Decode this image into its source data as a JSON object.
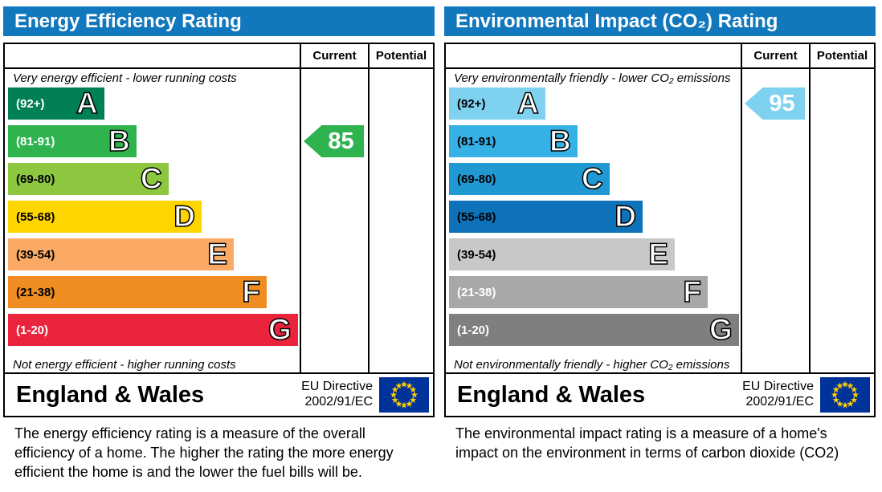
{
  "chart_data": [
    {
      "type": "bar",
      "id": "energy-efficiency",
      "title": "Energy Efficiency Rating",
      "header_color": "#1278be",
      "column_headers": {
        "current": "Current",
        "potential": "Potential"
      },
      "caption_top": "Very energy efficient - lower running costs",
      "caption_bottom": "Not energy efficient - higher running costs",
      "bands": [
        {
          "letter": "A",
          "range": "(92+)",
          "min": 92,
          "max": 100,
          "color": "#008054",
          "text_color": "#ffffff",
          "width_pct": 33
        },
        {
          "letter": "B",
          "range": "(81-91)",
          "min": 81,
          "max": 91,
          "color": "#2eb34e",
          "text_color": "#ffffff",
          "width_pct": 44
        },
        {
          "letter": "C",
          "range": "(69-80)",
          "min": 69,
          "max": 80,
          "color": "#8dc63f",
          "text_color": "#000000",
          "width_pct": 55
        },
        {
          "letter": "D",
          "range": "(55-68)",
          "min": 55,
          "max": 68,
          "color": "#ffd500",
          "text_color": "#000000",
          "width_pct": 66.4
        },
        {
          "letter": "E",
          "range": "(39-54)",
          "min": 39,
          "max": 54,
          "color": "#fbaa65",
          "text_color": "#000000",
          "width_pct": 77.4
        },
        {
          "letter": "F",
          "range": "(21-38)",
          "min": 21,
          "max": 38,
          "color": "#ef8d22",
          "text_color": "#000000",
          "width_pct": 88.7
        },
        {
          "letter": "G",
          "range": "(1-20)",
          "min": 1,
          "max": 20,
          "color": "#e9243c",
          "text_color": "#ffffff",
          "width_pct": 99.4
        }
      ],
      "current": 85,
      "potential": null,
      "footer": {
        "region": "England & Wales",
        "directive_line1": "EU Directive",
        "directive_line2": "2002/91/EC"
      },
      "eu_flag": {
        "field_color": "#003399",
        "star_color": "#ffcc00"
      },
      "description": "The energy efficiency rating is a measure of the overall efficiency of a home.  The higher the rating the more energy efficient the home is and the lower the fuel bills will be."
    },
    {
      "type": "bar",
      "id": "environmental-impact",
      "title": "Environmental Impact (CO₂) Rating",
      "header_color": "#1278be",
      "column_headers": {
        "current": "Current",
        "potential": "Potential"
      },
      "caption_top": "Very environmentally friendly - lower CO₂ emissions",
      "caption_bottom": "Not environmentally friendly - higher CO₂ emissions",
      "bands": [
        {
          "letter": "A",
          "range": "(92+)",
          "min": 92,
          "max": 100,
          "color": "#7fd1f0",
          "text_color": "#000000",
          "width_pct": 33
        },
        {
          "letter": "B",
          "range": "(81-91)",
          "min": 81,
          "max": 91,
          "color": "#35b1e6",
          "text_color": "#000000",
          "width_pct": 44
        },
        {
          "letter": "C",
          "range": "(69-80)",
          "min": 69,
          "max": 80,
          "color": "#2098d1",
          "text_color": "#000000",
          "width_pct": 55
        },
        {
          "letter": "D",
          "range": "(55-68)",
          "min": 55,
          "max": 68,
          "color": "#0d72b9",
          "text_color": "#000000",
          "width_pct": 66.4
        },
        {
          "letter": "E",
          "range": "(39-54)",
          "min": 39,
          "max": 54,
          "color": "#c8c8c8",
          "text_color": "#000000",
          "width_pct": 77.4
        },
        {
          "letter": "F",
          "range": "(21-38)",
          "min": 21,
          "max": 38,
          "color": "#a8a8a8",
          "text_color": "#ffffff",
          "width_pct": 88.7
        },
        {
          "letter": "G",
          "range": "(1-20)",
          "min": 1,
          "max": 20,
          "color": "#7f7f7f",
          "text_color": "#ffffff",
          "width_pct": 99.4
        }
      ],
      "current": 95,
      "potential": null,
      "footer": {
        "region": "England & Wales",
        "directive_line1": "EU Directive",
        "directive_line2": "2002/91/EC"
      },
      "eu_flag": {
        "field_color": "#003399",
        "star_color": "#ffcc00"
      },
      "description": "The environmental impact rating is a measure of a home's impact on the environment in terms of carbon dioxide (CO2)"
    }
  ]
}
